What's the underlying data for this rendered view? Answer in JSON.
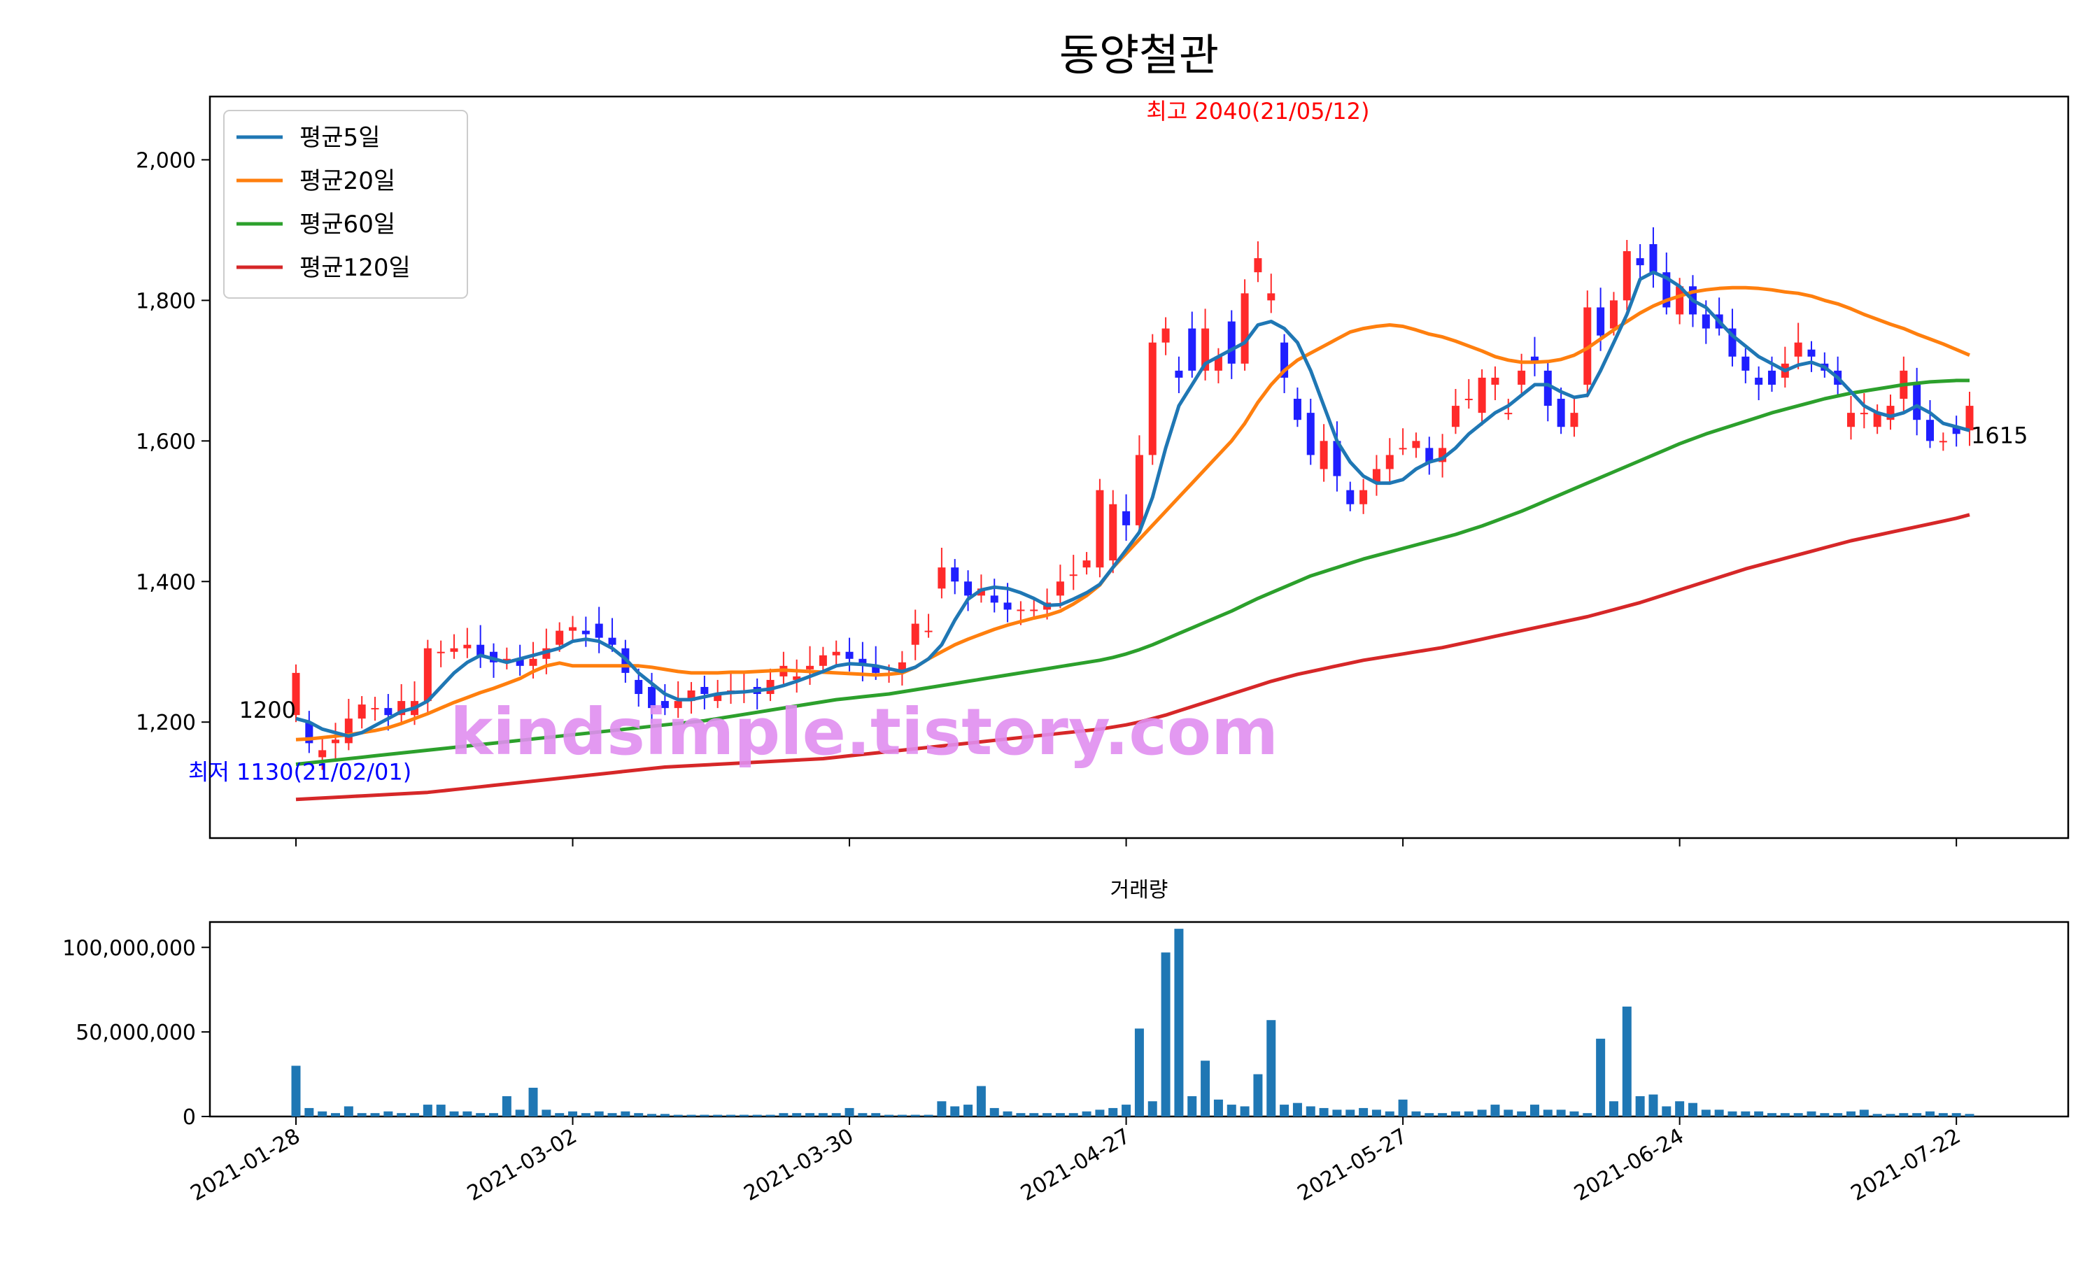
{
  "chart_data": {
    "type": "candlestick",
    "title": "동양철관",
    "legend_position": "top-left",
    "legend": [
      {
        "name": "평균5일",
        "color": "#1f77b4"
      },
      {
        "name": "평균20일",
        "color": "#ff7f0e"
      },
      {
        "name": "평균60일",
        "color": "#2ca02c"
      },
      {
        "name": "평균120일",
        "color": "#d62728"
      }
    ],
    "price_axis": {
      "ylim": [
        1035,
        2090
      ],
      "ticks": [
        1200,
        1400,
        1600,
        1800,
        2000
      ],
      "tick_labels": [
        "1,200",
        "1,400",
        "1,600",
        "1,800",
        "2,000"
      ]
    },
    "x_ticks": [
      "2021-01-28",
      "2021-03-02",
      "2021-03-30",
      "2021-04-27",
      "2021-05-27",
      "2021-06-24",
      "2021-07-22"
    ],
    "x_tick_index": [
      0,
      21,
      42,
      63,
      84,
      105,
      126
    ],
    "day_count": 128,
    "colors": {
      "up": "#ff2a2a",
      "down": "#1f1fff",
      "volume": "#1f77b4",
      "high_label": "#ff0000",
      "low_label": "#0000ff",
      "watermark": "#e08ef0"
    },
    "annotations": {
      "high": {
        "text": "최고 2040(21/05/12)",
        "index": 73,
        "value": 2040
      },
      "low": {
        "text": "최저 1130(21/02/01)",
        "index": 2,
        "value": 1130
      },
      "start_label": {
        "text": "1200",
        "index": 0,
        "value": 1200
      },
      "end_label": {
        "text": "1615",
        "index": 127,
        "value": 1615
      }
    },
    "watermark": "kindsimple.tistory.com",
    "candles": {
      "open": [
        1210,
        1200,
        1150,
        1170,
        1170,
        1205,
        1220,
        1220,
        1210,
        1210,
        1230,
        1300,
        1300,
        1305,
        1310,
        1300,
        1285,
        1290,
        1280,
        1290,
        1310,
        1330,
        1330,
        1340,
        1320,
        1305,
        1260,
        1250,
        1230,
        1220,
        1230,
        1250,
        1230,
        1240,
        1245,
        1250,
        1240,
        1265,
        1260,
        1275,
        1280,
        1295,
        1300,
        1290,
        1280,
        1270,
        1270,
        1310,
        1330,
        1390,
        1420,
        1400,
        1380,
        1380,
        1370,
        1360,
        1360,
        1360,
        1380,
        1410,
        1420,
        1420,
        1430,
        1500,
        1480,
        1580,
        1740,
        1700,
        1760,
        1700,
        1700,
        1770,
        1710,
        1840,
        1800,
        1740,
        1660,
        1640,
        1560,
        1600,
        1530,
        1510,
        1540,
        1560,
        1590,
        1590,
        1590,
        1570,
        1620,
        1660,
        1640,
        1680,
        1640,
        1680,
        1720,
        1700,
        1660,
        1620,
        1680,
        1790,
        1760,
        1800,
        1860,
        1880,
        1840,
        1780,
        1820,
        1780,
        1780,
        1760,
        1720,
        1690,
        1700,
        1690,
        1720,
        1730,
        1710,
        1700,
        1620,
        1640,
        1620,
        1630,
        1660,
        1680,
        1630,
        1600,
        1620,
        1615
      ],
      "close": [
        1270,
        1170,
        1160,
        1175,
        1205,
        1225,
        1220,
        1210,
        1230,
        1230,
        1305,
        1300,
        1305,
        1310,
        1295,
        1285,
        1290,
        1280,
        1290,
        1305,
        1330,
        1335,
        1325,
        1320,
        1310,
        1270,
        1240,
        1220,
        1220,
        1230,
        1245,
        1240,
        1240,
        1245,
        1245,
        1240,
        1260,
        1280,
        1265,
        1280,
        1295,
        1300,
        1290,
        1280,
        1270,
        1270,
        1285,
        1340,
        1330,
        1420,
        1400,
        1380,
        1390,
        1370,
        1360,
        1360,
        1360,
        1370,
        1400,
        1410,
        1430,
        1530,
        1510,
        1480,
        1580,
        1740,
        1760,
        1690,
        1700,
        1760,
        1720,
        1710,
        1810,
        1860,
        1810,
        1690,
        1630,
        1580,
        1600,
        1550,
        1510,
        1530,
        1560,
        1580,
        1590,
        1600,
        1570,
        1590,
        1650,
        1660,
        1690,
        1690,
        1640,
        1700,
        1710,
        1650,
        1620,
        1640,
        1790,
        1750,
        1800,
        1870,
        1850,
        1840,
        1790,
        1820,
        1780,
        1760,
        1760,
        1720,
        1700,
        1680,
        1680,
        1710,
        1740,
        1720,
        1700,
        1680,
        1640,
        1640,
        1640,
        1650,
        1700,
        1630,
        1600,
        1600,
        1610,
        1650
      ]
    },
    "ma5": [
      1205,
      1200,
      1190,
      1185,
      1180,
      1185,
      1195,
      1205,
      1215,
      1220,
      1230,
      1250,
      1270,
      1285,
      1295,
      1290,
      1285,
      1290,
      1295,
      1300,
      1305,
      1315,
      1318,
      1315,
      1305,
      1290,
      1270,
      1255,
      1240,
      1232,
      1232,
      1236,
      1240,
      1242,
      1243,
      1245,
      1247,
      1252,
      1258,
      1265,
      1272,
      1280,
      1283,
      1282,
      1280,
      1276,
      1272,
      1278,
      1290,
      1310,
      1345,
      1375,
      1388,
      1392,
      1390,
      1384,
      1376,
      1366,
      1367,
      1375,
      1384,
      1396,
      1420,
      1445,
      1470,
      1520,
      1590,
      1650,
      1680,
      1710,
      1720,
      1730,
      1740,
      1765,
      1770,
      1760,
      1740,
      1700,
      1650,
      1600,
      1570,
      1550,
      1540,
      1540,
      1545,
      1560,
      1570,
      1575,
      1590,
      1610,
      1625,
      1640,
      1650,
      1665,
      1680,
      1680,
      1670,
      1662,
      1665,
      1700,
      1740,
      1780,
      1830,
      1840,
      1832,
      1820,
      1800,
      1790,
      1770,
      1750,
      1735,
      1720,
      1710,
      1700,
      1708,
      1712,
      1705,
      1690,
      1670,
      1650,
      1640,
      1635,
      1640,
      1650,
      1640,
      1625,
      1620,
      1615
    ],
    "ma20": [
      1175,
      1176,
      1178,
      1180,
      1182,
      1185,
      1188,
      1192,
      1198,
      1205,
      1212,
      1220,
      1228,
      1235,
      1242,
      1248,
      1255,
      1262,
      1272,
      1280,
      1284,
      1280,
      1280,
      1280,
      1280,
      1280,
      1280,
      1278,
      1275,
      1272,
      1270,
      1270,
      1270,
      1271,
      1271,
      1272,
      1273,
      1274,
      1273,
      1272,
      1271,
      1270,
      1269,
      1268,
      1267,
      1268,
      1270,
      1278,
      1290,
      1300,
      1310,
      1318,
      1325,
      1332,
      1338,
      1343,
      1348,
      1352,
      1358,
      1368,
      1380,
      1395,
      1420,
      1440,
      1460,
      1480,
      1500,
      1520,
      1540,
      1560,
      1580,
      1600,
      1625,
      1655,
      1680,
      1700,
      1715,
      1725,
      1735,
      1745,
      1755,
      1760,
      1763,
      1765,
      1763,
      1758,
      1752,
      1748,
      1742,
      1735,
      1728,
      1720,
      1715,
      1712,
      1712,
      1713,
      1716,
      1722,
      1732,
      1745,
      1758,
      1770,
      1782,
      1792,
      1800,
      1806,
      1812,
      1815,
      1817,
      1818,
      1818,
      1817,
      1815,
      1812,
      1810,
      1806,
      1800,
      1795,
      1788,
      1780,
      1773,
      1766,
      1760,
      1752,
      1745,
      1738,
      1730,
      1722
    ],
    "ma60": [
      1140,
      1142,
      1144,
      1146,
      1148,
      1150,
      1152,
      1154,
      1156,
      1158,
      1160,
      1162,
      1164,
      1166,
      1168,
      1170,
      1172,
      1174,
      1176,
      1178,
      1180,
      1182,
      1184,
      1186,
      1188,
      1190,
      1192,
      1194,
      1196,
      1198,
      1200,
      1202,
      1205,
      1208,
      1211,
      1214,
      1217,
      1220,
      1223,
      1226,
      1229,
      1232,
      1234,
      1236,
      1238,
      1240,
      1243,
      1246,
      1249,
      1252,
      1255,
      1258,
      1261,
      1264,
      1267,
      1270,
      1273,
      1276,
      1279,
      1282,
      1285,
      1288,
      1292,
      1297,
      1303,
      1310,
      1318,
      1326,
      1334,
      1342,
      1350,
      1358,
      1367,
      1376,
      1384,
      1392,
      1400,
      1408,
      1414,
      1420,
      1426,
      1432,
      1437,
      1442,
      1447,
      1452,
      1457,
      1462,
      1467,
      1473,
      1479,
      1486,
      1493,
      1500,
      1508,
      1516,
      1524,
      1532,
      1540,
      1548,
      1556,
      1564,
      1572,
      1580,
      1588,
      1596,
      1603,
      1610,
      1616,
      1622,
      1628,
      1634,
      1640,
      1645,
      1650,
      1655,
      1660,
      1664,
      1668,
      1671,
      1674,
      1677,
      1680,
      1682,
      1684,
      1685,
      1686,
      1686
    ],
    "ma120": [
      1090,
      1091,
      1092,
      1093,
      1094,
      1095,
      1096,
      1097,
      1098,
      1099,
      1100,
      1102,
      1104,
      1106,
      1108,
      1110,
      1112,
      1114,
      1116,
      1118,
      1120,
      1122,
      1124,
      1126,
      1128,
      1130,
      1132,
      1134,
      1136,
      1137,
      1138,
      1139,
      1140,
      1141,
      1142,
      1143,
      1144,
      1145,
      1146,
      1147,
      1148,
      1150,
      1152,
      1154,
      1156,
      1158,
      1160,
      1162,
      1164,
      1166,
      1168,
      1170,
      1172,
      1174,
      1176,
      1178,
      1180,
      1182,
      1184,
      1186,
      1188,
      1190,
      1193,
      1196,
      1200,
      1205,
      1210,
      1216,
      1222,
      1228,
      1234,
      1240,
      1246,
      1252,
      1258,
      1263,
      1268,
      1272,
      1276,
      1280,
      1284,
      1288,
      1291,
      1294,
      1297,
      1300,
      1303,
      1306,
      1310,
      1314,
      1318,
      1322,
      1326,
      1330,
      1334,
      1338,
      1342,
      1346,
      1350,
      1355,
      1360,
      1365,
      1370,
      1376,
      1382,
      1388,
      1394,
      1400,
      1406,
      1412,
      1418,
      1423,
      1428,
      1433,
      1438,
      1443,
      1448,
      1453,
      1458,
      1462,
      1466,
      1470,
      1474,
      1478,
      1482,
      1486,
      1490,
      1495
    ],
    "volume_axis": {
      "label": "거래량",
      "ylim": [
        0,
        115000000
      ],
      "ticks": [
        0,
        50000000,
        100000000
      ],
      "tick_labels": [
        "0",
        "50,000,000",
        "100,000,000"
      ]
    },
    "volume": [
      30000000,
      5000000,
      3000000,
      2000000,
      6000000,
      2000000,
      2000000,
      3000000,
      2000000,
      2000000,
      7000000,
      7000000,
      3000000,
      3000000,
      2000000,
      2000000,
      12000000,
      4000000,
      17000000,
      4000000,
      2000000,
      3000000,
      2000000,
      3000000,
      2000000,
      3000000,
      2000000,
      1500000,
      1500000,
      1000000,
      1000000,
      1000000,
      1000000,
      1000000,
      1000000,
      1000000,
      1000000,
      2000000,
      2000000,
      2000000,
      2000000,
      2000000,
      5000000,
      2000000,
      2000000,
      1000000,
      1000000,
      1000000,
      1000000,
      9000000,
      6000000,
      7000000,
      18000000,
      5000000,
      3000000,
      2000000,
      2000000,
      2000000,
      2000000,
      2000000,
      3000000,
      4000000,
      5000000,
      7000000,
      52000000,
      9000000,
      97000000,
      111000000,
      12000000,
      33000000,
      10000000,
      7000000,
      6000000,
      25000000,
      57000000,
      7000000,
      8000000,
      6000000,
      5000000,
      4000000,
      4000000,
      5000000,
      4000000,
      3000000,
      10000000,
      3000000,
      2000000,
      2000000,
      3000000,
      3000000,
      4000000,
      7000000,
      4000000,
      3000000,
      7000000,
      4000000,
      4000000,
      3000000,
      2000000,
      46000000,
      9000000,
      65000000,
      12000000,
      13000000,
      6000000,
      9000000,
      8000000,
      4000000,
      4000000,
      3000000,
      3000000,
      3000000,
      2000000,
      2000000,
      2000000,
      3000000,
      2000000,
      2000000,
      3000000,
      4000000,
      1500000,
      1500000,
      2000000,
      2000000,
      3000000,
      2000000,
      2000000,
      1500000
    ]
  }
}
